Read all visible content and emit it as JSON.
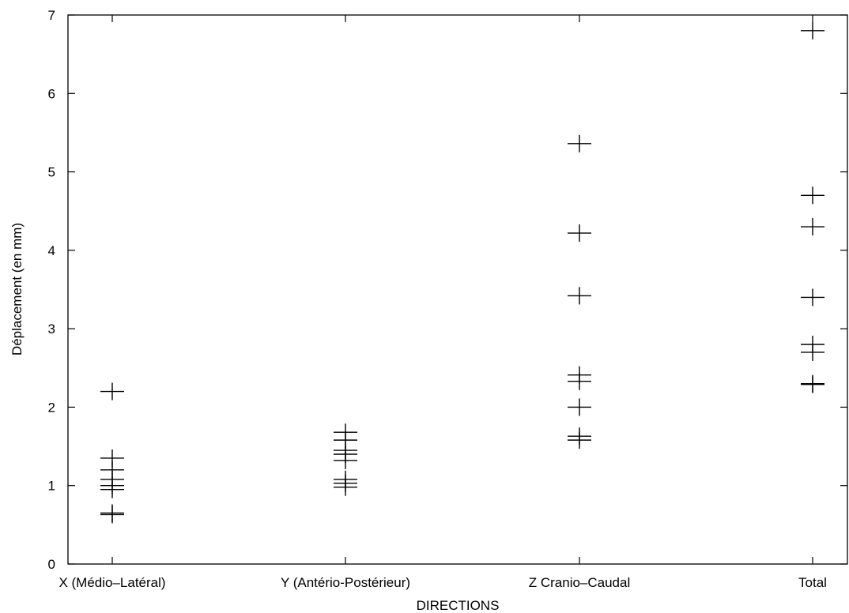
{
  "chart_data": {
    "type": "scatter",
    "title": "",
    "xlabel": "DIRECTIONS",
    "ylabel": "Déplacement (en mm)",
    "ylim": [
      0,
      7
    ],
    "yticks": [
      0,
      1,
      2,
      3,
      4,
      5,
      6,
      7
    ],
    "categories": [
      "X (Médio–Latéral)",
      "Y (Antério-Postérieur)",
      "Z Cranio–Caudal",
      "Total"
    ],
    "grid": false,
    "legend": "none",
    "marker": "plus",
    "color": "#000000",
    "points": [
      {
        "category": 0,
        "values": [
          2.2,
          1.35,
          1.2,
          1.08,
          1.0,
          0.95,
          0.65,
          0.63
        ]
      },
      {
        "category": 1,
        "values": [
          1.68,
          1.58,
          1.45,
          1.4,
          1.32,
          1.08,
          1.03,
          0.98
        ]
      },
      {
        "category": 2,
        "values": [
          5.36,
          4.22,
          3.42,
          2.41,
          2.33,
          2.0,
          1.63,
          1.58
        ]
      },
      {
        "category": 3,
        "values": [
          6.8,
          4.7,
          4.3,
          3.4,
          2.8,
          2.7,
          2.3,
          2.29
        ]
      }
    ]
  }
}
